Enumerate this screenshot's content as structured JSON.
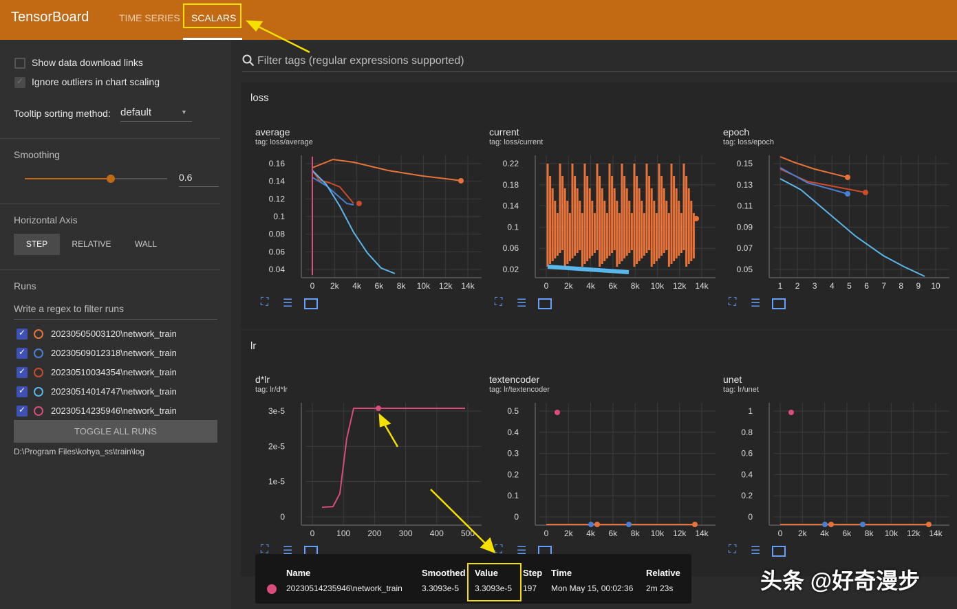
{
  "app": {
    "title": "TensorBoard"
  },
  "tabs": [
    {
      "label": "TIME SERIES"
    },
    {
      "label": "SCALARS"
    }
  ],
  "sidebar": {
    "show_download": "Show data download links",
    "ignore_outliers": "Ignore outliers in chart scaling",
    "tooltip_label": "Tooltip sorting method:",
    "tooltip_value": "default",
    "smoothing_label": "Smoothing",
    "smoothing_value": "0.6",
    "haxis_label": "Horizontal Axis",
    "haxis_options": [
      "STEP",
      "RELATIVE",
      "WALL"
    ],
    "runs_label": "Runs",
    "runs_filter_placeholder": "Write a regex to filter runs",
    "runs": [
      {
        "name": "20230505003120\\network_train",
        "color": "#e8733a"
      },
      {
        "name": "20230509012318\\network_train",
        "color": "#4a7fd4"
      },
      {
        "name": "20230510034354\\network_train",
        "color": "#cc4b2a"
      },
      {
        "name": "20230514014747\\network_train",
        "color": "#5ab7ec"
      },
      {
        "name": "20230514235946\\network_train",
        "color": "#d94c7c"
      }
    ],
    "toggle_all": "TOGGLE ALL RUNS",
    "log_dir": "D:\\Program Files\\kohya_ss\\train\\log"
  },
  "main": {
    "filter_placeholder": "Filter tags (regular expressions supported)",
    "groups": [
      {
        "name": "loss"
      },
      {
        "name": "lr"
      }
    ]
  },
  "charts": [
    {
      "title": "average",
      "tag": "tag: loss/average",
      "xticks": [
        "0",
        "2k",
        "4k",
        "6k",
        "8k",
        "10k",
        "12k",
        "14k"
      ],
      "yticks": [
        "0.16",
        "0.14",
        "0.12",
        "0.1",
        "0.08",
        "0.06",
        "0.04"
      ]
    },
    {
      "title": "current",
      "tag": "tag: loss/current",
      "xticks": [
        "0",
        "2k",
        "4k",
        "6k",
        "8k",
        "10k",
        "12k",
        "14k"
      ],
      "yticks": [
        "0.22",
        "0.18",
        "0.14",
        "0.1",
        "0.06",
        "0.02"
      ]
    },
    {
      "title": "epoch",
      "tag": "tag: loss/epoch",
      "xticks": [
        "1",
        "2",
        "3",
        "4",
        "5",
        "6",
        "7",
        "8",
        "9",
        "10"
      ],
      "yticks": [
        "0.15",
        "0.13",
        "0.11",
        "0.09",
        "0.07",
        "0.05"
      ]
    },
    {
      "title": "d*lr",
      "tag": "tag: lr/d*lr",
      "xticks": [
        "0",
        "100",
        "200",
        "300",
        "400",
        "500"
      ],
      "yticks": [
        "3e-5",
        "2e-5",
        "1e-5",
        "0"
      ]
    },
    {
      "title": "textencoder",
      "tag": "tag: lr/textencoder",
      "xticks": [
        "0",
        "2k",
        "4k",
        "6k",
        "8k",
        "10k",
        "12k",
        "14k"
      ],
      "yticks": [
        "0.5",
        "0.4",
        "0.3",
        "0.2",
        "0.1",
        "0"
      ]
    },
    {
      "title": "unet",
      "tag": "tag: lr/unet",
      "xticks": [
        "0",
        "2k",
        "4k",
        "6k",
        "8k",
        "10k",
        "12k",
        "14k"
      ],
      "yticks": [
        "1",
        "0.8",
        "0.6",
        "0.4",
        "0.2",
        "0"
      ]
    }
  ],
  "tooltip": {
    "headers": [
      "Name",
      "Smoothed",
      "Value",
      "Step",
      "Time",
      "Relative"
    ],
    "row": {
      "name": "20230514235946\\network_train",
      "smoothed": "3.3093e-5",
      "value": "3.3093e-5",
      "step": "197",
      "time": "Mon May 15, 00:02:36",
      "relative": "2m 23s",
      "color": "#d94c7c"
    }
  },
  "watermark": "头条 @好奇漫步"
}
